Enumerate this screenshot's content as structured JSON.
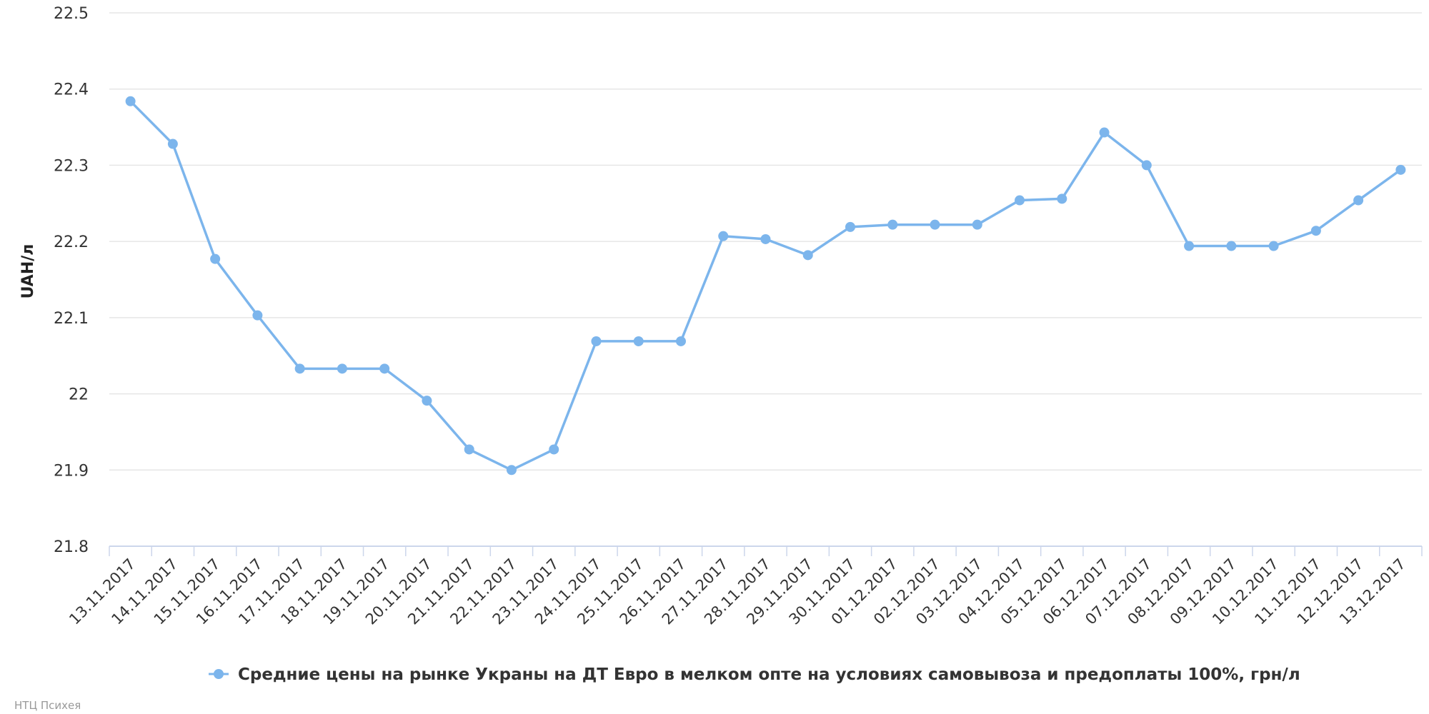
{
  "chart_data": {
    "type": "line",
    "title": "",
    "xlabel": "",
    "ylabel": "UAH/л",
    "ylim": [
      21.8,
      22.5
    ],
    "yticks": [
      21.8,
      21.9,
      22,
      22.1,
      22.2,
      22.3,
      22.4,
      22.5
    ],
    "grid": "horizontal",
    "legend_position": "bottom-center",
    "categories": [
      "13.11.2017",
      "14.11.2017",
      "15.11.2017",
      "16.11.2017",
      "17.11.2017",
      "18.11.2017",
      "19.11.2017",
      "20.11.2017",
      "21.11.2017",
      "22.11.2017",
      "23.11.2017",
      "24.11.2017",
      "25.11.2017",
      "26.11.2017",
      "27.11.2017",
      "28.11.2017",
      "29.11.2017",
      "30.11.2017",
      "01.12.2017",
      "02.12.2017",
      "03.12.2017",
      "04.12.2017",
      "05.12.2017",
      "06.12.2017",
      "07.12.2017",
      "08.12.2017",
      "09.12.2017",
      "10.12.2017",
      "11.12.2017",
      "12.12.2017",
      "13.12.2017"
    ],
    "series": [
      {
        "name": "Средние цены на рынке Украны на ДТ Евро в мелком опте на условиях самовывоза и предоплаты 100%, грн/л",
        "color": "#7cb5ec",
        "values": [
          22.384,
          22.328,
          22.177,
          22.103,
          22.033,
          22.033,
          22.033,
          21.991,
          21.927,
          21.9,
          21.927,
          22.069,
          22.069,
          22.069,
          22.207,
          22.203,
          22.182,
          22.219,
          22.222,
          22.222,
          22.222,
          22.254,
          22.256,
          22.343,
          22.3,
          22.194,
          22.194,
          22.194,
          22.214,
          22.254,
          22.294
        ]
      }
    ]
  },
  "credit": "НТЦ Психея"
}
